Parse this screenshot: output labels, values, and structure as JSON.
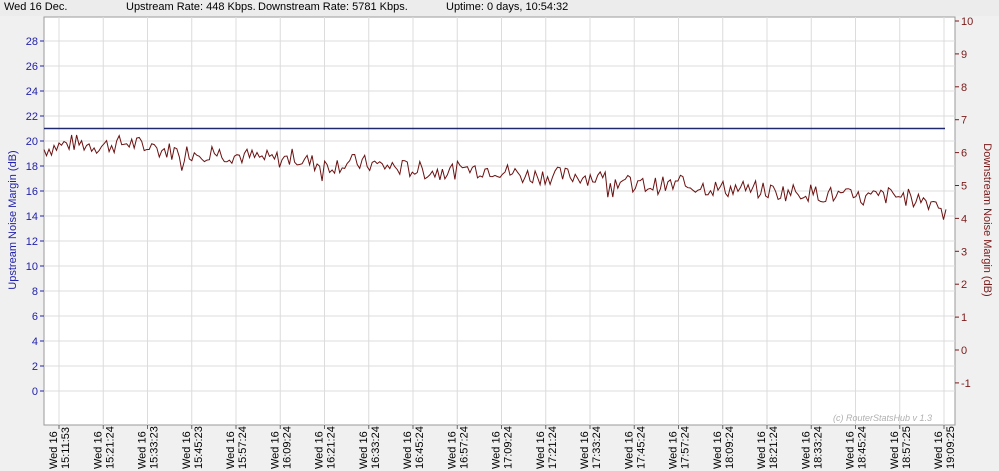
{
  "status": {
    "date": "Wed 16 Dec.",
    "upstream": "Upstream Rate: 448 Kbps.",
    "downstream": "Downstream Rate: 5781 Kbps.",
    "uptime": "Uptime: 0 days, 10:54:32"
  },
  "watermark": "(c) RouterStatsHub v 1.3",
  "colors": {
    "left_axis": "#2222aa",
    "right_axis": "#7a1a1a",
    "series": "#6b1010",
    "reference": "#1f2a6e",
    "grid": "#dcdcdc"
  },
  "chart_data": {
    "type": "line",
    "left_axis": {
      "label": "Upstream Noise Margin (dB)",
      "range": [
        -2,
        30
      ],
      "ticks": [
        0,
        2,
        4,
        6,
        8,
        10,
        12,
        14,
        16,
        18,
        20,
        22,
        24,
        26,
        28
      ]
    },
    "right_axis": {
      "label": "Downstream Noise Margin (dB)",
      "range": [
        -2,
        10
      ],
      "ticks": [
        -1,
        0,
        1,
        2,
        3,
        4,
        5,
        6,
        7,
        8,
        9,
        10
      ]
    },
    "x_ticks": [
      {
        "day": "Wed 16",
        "time": "15:11:53"
      },
      {
        "day": "Wed 16",
        "time": "15:21:24"
      },
      {
        "day": "Wed 16",
        "time": "15:33:23"
      },
      {
        "day": "Wed 16",
        "time": "15:45:23"
      },
      {
        "day": "Wed 16",
        "time": "15:57:24"
      },
      {
        "day": "Wed 16",
        "time": "16:09:24"
      },
      {
        "day": "Wed 16",
        "time": "16:21:24"
      },
      {
        "day": "Wed 16",
        "time": "16:33:24"
      },
      {
        "day": "Wed 16",
        "time": "16:45:24"
      },
      {
        "day": "Wed 16",
        "time": "16:57:24"
      },
      {
        "day": "Wed 16",
        "time": "17:09:24"
      },
      {
        "day": "Wed 16",
        "time": "17:21:24"
      },
      {
        "day": "Wed 16",
        "time": "17:33:24"
      },
      {
        "day": "Wed 16",
        "time": "17:45:24"
      },
      {
        "day": "Wed 16",
        "time": "17:57:24"
      },
      {
        "day": "Wed 16",
        "time": "18:09:24"
      },
      {
        "day": "Wed 16",
        "time": "18:21:24"
      },
      {
        "day": "Wed 16",
        "time": "18:33:24"
      },
      {
        "day": "Wed 16",
        "time": "18:45:24"
      },
      {
        "day": "Wed 16",
        "time": "18:57:25"
      },
      {
        "day": "Wed 16",
        "time": "19:09:25"
      }
    ],
    "series": [
      {
        "axis": "left",
        "style": "flat",
        "values": [
          21,
          21
        ]
      },
      {
        "axis": "right",
        "style": "noisy",
        "values": [
          6.1,
          6.3,
          6.2,
          6.3,
          6.1,
          6.0,
          6.0,
          5.9,
          5.8,
          5.8,
          5.6,
          5.7,
          5.6,
          5.5,
          5.4,
          5.5,
          5.5,
          5.3,
          5.3,
          5.3,
          5.2,
          5.0,
          5.0,
          5.0,
          4.9,
          4.9,
          4.8,
          4.8,
          4.7,
          4.6,
          4.7,
          4.6,
          4.4
        ]
      }
    ]
  }
}
